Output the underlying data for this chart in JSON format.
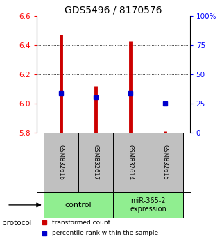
{
  "title": "GDS5496 / 8170576",
  "samples": [
    "GSM832616",
    "GSM832617",
    "GSM832614",
    "GSM832615"
  ],
  "red_values": [
    6.47,
    6.12,
    6.43,
    5.81
  ],
  "blue_values": [
    6.07,
    6.04,
    6.07,
    6.0
  ],
  "ylim": [
    5.8,
    6.6
  ],
  "yticks": [
    5.8,
    6.0,
    6.2,
    6.4,
    6.6
  ],
  "right_yticks": [
    0,
    25,
    50,
    75,
    100
  ],
  "right_ytick_labels": [
    "0",
    "25",
    "50",
    "75",
    "100%"
  ],
  "bar_color": "#cc0000",
  "dot_color": "#0000cc",
  "sample_box_color": "#c0c0c0",
  "group_box_color": "#90ee90",
  "title_fontsize": 10,
  "tick_fontsize": 7.5,
  "legend_red": "transformed count",
  "legend_blue": "percentile rank within the sample"
}
